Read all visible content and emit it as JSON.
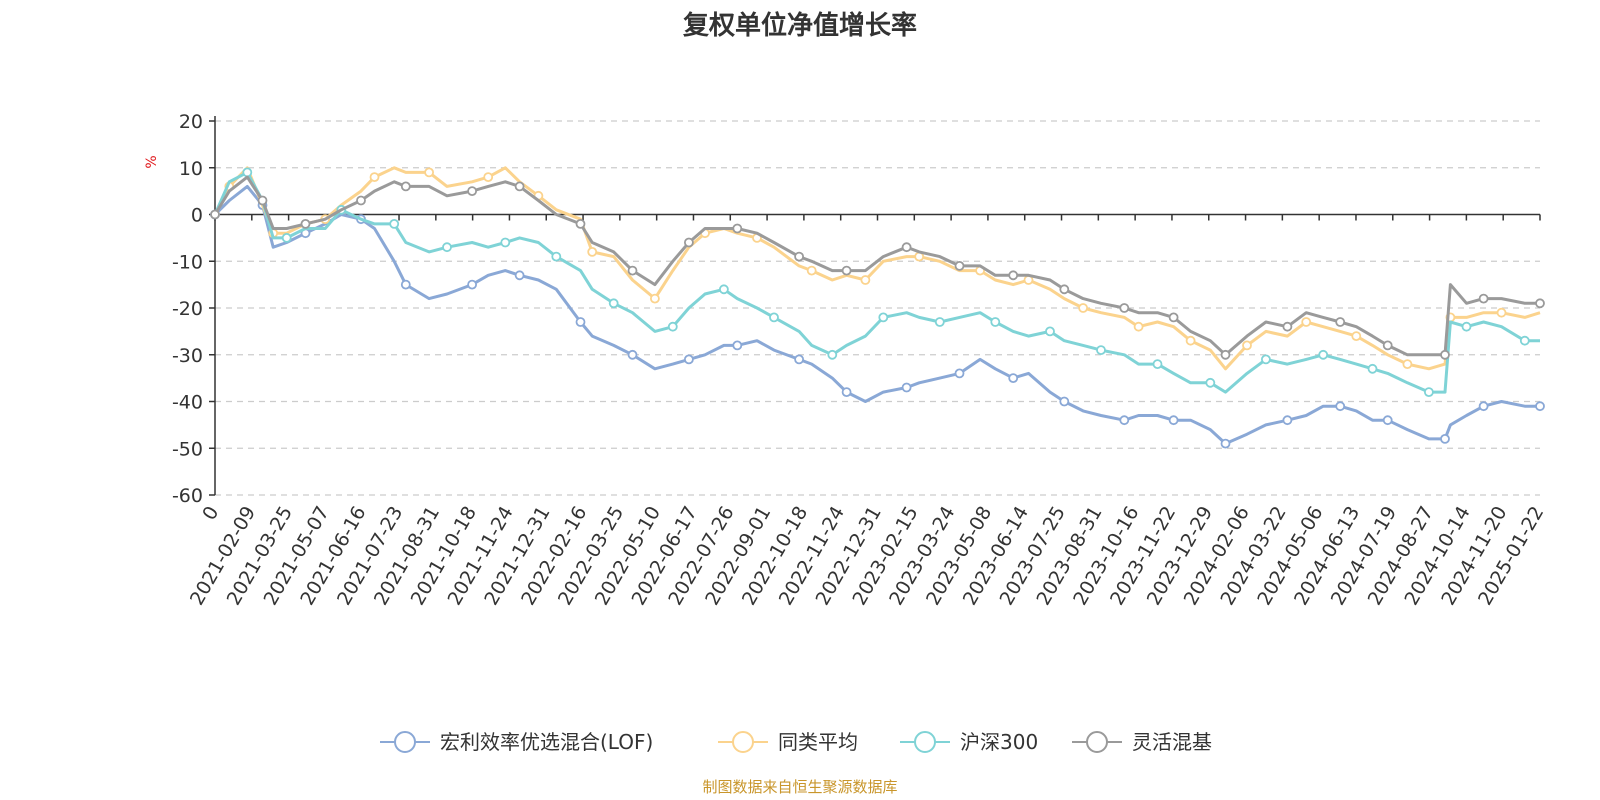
{
  "chart_data": {
    "type": "line",
    "title": "复权单位净值增长率",
    "ylabel": "%",
    "ylim": [
      -60,
      20
    ],
    "yticks": [
      20,
      10,
      0,
      -10,
      -20,
      -30,
      -40,
      -50,
      -60
    ],
    "x_range": [
      "2021-01-04",
      "2025-01-22"
    ],
    "xtick_labels": [
      "0",
      "2021-02-09",
      "2021-03-25",
      "2021-05-07",
      "2021-06-16",
      "2021-07-23",
      "2021-08-31",
      "2021-10-18",
      "2021-11-24",
      "2021-12-31",
      "2022-02-16",
      "2022-03-25",
      "2022-05-10",
      "2022-06-17",
      "2022-07-26",
      "2022-09-01",
      "2022-10-18",
      "2022-11-24",
      "2022-12-31",
      "2023-02-15",
      "2023-03-24",
      "2023-05-08",
      "2023-06-14",
      "2023-07-25",
      "2023-08-31",
      "2023-10-16",
      "2023-11-22",
      "2023-12-29",
      "2024-02-06",
      "2024-03-22",
      "2024-05-06",
      "2024-06-13",
      "2024-07-19",
      "2024-08-27",
      "2024-10-14",
      "2024-11-20",
      "2025-01-22"
    ],
    "grid": "horizontal-dashed",
    "legend_position": "bottom",
    "source_note": "制图数据来自恒生聚源数据库",
    "series": [
      {
        "name": "宏利效率优选混合(LOF)",
        "color": "#8aa8d6",
        "x": [
          "2021-01-04",
          "2021-01-20",
          "2021-02-09",
          "2021-02-26",
          "2021-03-10",
          "2021-03-25",
          "2021-04-15",
          "2021-05-07",
          "2021-05-25",
          "2021-06-16",
          "2021-07-01",
          "2021-07-23",
          "2021-08-05",
          "2021-08-31",
          "2021-09-20",
          "2021-10-18",
          "2021-11-05",
          "2021-11-24",
          "2021-12-10",
          "2021-12-31",
          "2022-01-20",
          "2022-02-16",
          "2022-03-01",
          "2022-03-25",
          "2022-04-15",
          "2022-05-10",
          "2022-05-30",
          "2022-06-17",
          "2022-07-05",
          "2022-07-26",
          "2022-08-10",
          "2022-09-01",
          "2022-09-20",
          "2022-10-18",
          "2022-11-01",
          "2022-11-24",
          "2022-12-10",
          "2022-12-31",
          "2023-01-20",
          "2023-02-15",
          "2023-03-01",
          "2023-03-24",
          "2023-04-15",
          "2023-05-08",
          "2023-05-25",
          "2023-06-14",
          "2023-07-01",
          "2023-07-25",
          "2023-08-10",
          "2023-08-31",
          "2023-09-20",
          "2023-10-16",
          "2023-11-01",
          "2023-11-22",
          "2023-12-10",
          "2023-12-29",
          "2024-01-20",
          "2024-02-06",
          "2024-03-01",
          "2024-03-22",
          "2024-04-15",
          "2024-05-06",
          "2024-05-25",
          "2024-06-13",
          "2024-07-01",
          "2024-07-19",
          "2024-08-05",
          "2024-08-27",
          "2024-09-20",
          "2024-10-08",
          "2024-10-14",
          "2024-11-01",
          "2024-11-20",
          "2024-12-10",
          "2025-01-05",
          "2025-01-22"
        ],
        "values": [
          0,
          3,
          6,
          2,
          -7,
          -6,
          -4,
          -2,
          0,
          -1,
          -3,
          -10,
          -15,
          -18,
          -17,
          -15,
          -13,
          -12,
          -13,
          -14,
          -16,
          -23,
          -26,
          -28,
          -30,
          -33,
          -32,
          -31,
          -30,
          -28,
          -28,
          -27,
          -29,
          -31,
          -32,
          -35,
          -38,
          -40,
          -38,
          -37,
          -36,
          -35,
          -34,
          -31,
          -33,
          -35,
          -34,
          -38,
          -40,
          -42,
          -43,
          -44,
          -43,
          -43,
          -44,
          -44,
          -46,
          -49,
          -47,
          -45,
          -44,
          -43,
          -41,
          -41,
          -42,
          -44,
          -44,
          -46,
          -48,
          -48,
          -45,
          -43,
          -41,
          -40,
          -41,
          -41
        ]
      },
      {
        "name": "同类平均",
        "color": "#fbd38d",
        "x": [
          "2021-01-04",
          "2021-01-20",
          "2021-02-09",
          "2021-02-26",
          "2021-03-10",
          "2021-03-25",
          "2021-04-15",
          "2021-05-07",
          "2021-05-25",
          "2021-06-16",
          "2021-07-01",
          "2021-07-23",
          "2021-08-05",
          "2021-08-31",
          "2021-09-20",
          "2021-10-18",
          "2021-11-05",
          "2021-11-24",
          "2021-12-10",
          "2021-12-31",
          "2022-01-20",
          "2022-02-16",
          "2022-03-01",
          "2022-03-25",
          "2022-04-15",
          "2022-05-10",
          "2022-05-30",
          "2022-06-17",
          "2022-07-05",
          "2022-07-26",
          "2022-08-10",
          "2022-09-01",
          "2022-09-20",
          "2022-10-18",
          "2022-11-01",
          "2022-11-24",
          "2022-12-10",
          "2022-12-31",
          "2023-01-20",
          "2023-02-15",
          "2023-03-01",
          "2023-03-24",
          "2023-04-15",
          "2023-05-08",
          "2023-05-25",
          "2023-06-14",
          "2023-07-01",
          "2023-07-25",
          "2023-08-10",
          "2023-08-31",
          "2023-09-20",
          "2023-10-16",
          "2023-11-01",
          "2023-11-22",
          "2023-12-10",
          "2023-12-29",
          "2024-01-20",
          "2024-02-06",
          "2024-03-01",
          "2024-03-22",
          "2024-04-15",
          "2024-05-06",
          "2024-05-25",
          "2024-06-13",
          "2024-07-01",
          "2024-07-19",
          "2024-08-05",
          "2024-08-27",
          "2024-09-20",
          "2024-10-08",
          "2024-10-14",
          "2024-11-01",
          "2024-11-20",
          "2024-12-10",
          "2025-01-05",
          "2025-01-22"
        ],
        "values": [
          0,
          6,
          10,
          2,
          -4,
          -4,
          -2,
          -1,
          2,
          5,
          8,
          10,
          9,
          9,
          6,
          7,
          8,
          10,
          7,
          4,
          1,
          -1,
          -8,
          -9,
          -14,
          -18,
          -12,
          -7,
          -4,
          -3,
          -4,
          -5,
          -7,
          -11,
          -12,
          -14,
          -13,
          -14,
          -10,
          -9,
          -9,
          -10,
          -12,
          -12,
          -14,
          -15,
          -14,
          -16,
          -18,
          -20,
          -21,
          -22,
          -24,
          -23,
          -24,
          -27,
          -29,
          -33,
          -28,
          -25,
          -26,
          -23,
          -24,
          -25,
          -26,
          -28,
          -30,
          -32,
          -33,
          -32,
          -22,
          -22,
          -21,
          -21,
          -22,
          -21
        ]
      },
      {
        "name": "沪深300",
        "color": "#7fd3d6",
        "x": [
          "2021-01-04",
          "2021-01-20",
          "2021-02-09",
          "2021-02-26",
          "2021-03-10",
          "2021-03-25",
          "2021-04-15",
          "2021-05-07",
          "2021-05-25",
          "2021-06-16",
          "2021-07-01",
          "2021-07-23",
          "2021-08-05",
          "2021-08-31",
          "2021-09-20",
          "2021-10-18",
          "2021-11-05",
          "2021-11-24",
          "2021-12-10",
          "2021-12-31",
          "2022-01-20",
          "2022-02-16",
          "2022-03-01",
          "2022-03-25",
          "2022-04-15",
          "2022-05-10",
          "2022-05-30",
          "2022-06-17",
          "2022-07-05",
          "2022-07-26",
          "2022-08-10",
          "2022-09-01",
          "2022-09-20",
          "2022-10-18",
          "2022-11-01",
          "2022-11-24",
          "2022-12-10",
          "2022-12-31",
          "2023-01-20",
          "2023-02-15",
          "2023-03-01",
          "2023-03-24",
          "2023-04-15",
          "2023-05-08",
          "2023-05-25",
          "2023-06-14",
          "2023-07-01",
          "2023-07-25",
          "2023-08-10",
          "2023-08-31",
          "2023-09-20",
          "2023-10-16",
          "2023-11-01",
          "2023-11-22",
          "2023-12-10",
          "2023-12-29",
          "2024-01-20",
          "2024-02-06",
          "2024-03-01",
          "2024-03-22",
          "2024-04-15",
          "2024-05-06",
          "2024-05-25",
          "2024-06-13",
          "2024-07-01",
          "2024-07-19",
          "2024-08-05",
          "2024-08-27",
          "2024-09-20",
          "2024-10-08",
          "2024-10-14",
          "2024-11-01",
          "2024-11-20",
          "2024-12-10",
          "2025-01-05",
          "2025-01-22"
        ],
        "values": [
          0,
          7,
          9,
          3,
          -5,
          -5,
          -3,
          -3,
          1,
          -1,
          -2,
          -2,
          -6,
          -8,
          -7,
          -6,
          -7,
          -6,
          -5,
          -6,
          -9,
          -12,
          -16,
          -19,
          -21,
          -25,
          -24,
          -20,
          -17,
          -16,
          -18,
          -20,
          -22,
          -25,
          -28,
          -30,
          -28,
          -26,
          -22,
          -21,
          -22,
          -23,
          -22,
          -21,
          -23,
          -25,
          -26,
          -25,
          -27,
          -28,
          -29,
          -30,
          -32,
          -32,
          -34,
          -36,
          -36,
          -38,
          -34,
          -31,
          -32,
          -31,
          -30,
          -31,
          -32,
          -33,
          -34,
          -36,
          -38,
          -38,
          -23,
          -24,
          -23,
          -24,
          -27,
          -27
        ]
      },
      {
        "name": "灵活混基",
        "color": "#9a9a9a",
        "x": [
          "2021-01-04",
          "2021-01-20",
          "2021-02-09",
          "2021-02-26",
          "2021-03-10",
          "2021-03-25",
          "2021-04-15",
          "2021-05-07",
          "2021-05-25",
          "2021-06-16",
          "2021-07-01",
          "2021-07-23",
          "2021-08-05",
          "2021-08-31",
          "2021-09-20",
          "2021-10-18",
          "2021-11-05",
          "2021-11-24",
          "2021-12-10",
          "2021-12-31",
          "2022-01-20",
          "2022-02-16",
          "2022-03-01",
          "2022-03-25",
          "2022-04-15",
          "2022-05-10",
          "2022-05-30",
          "2022-06-17",
          "2022-07-05",
          "2022-07-26",
          "2022-08-10",
          "2022-09-01",
          "2022-09-20",
          "2022-10-18",
          "2022-11-01",
          "2022-11-24",
          "2022-12-10",
          "2022-12-31",
          "2023-01-20",
          "2023-02-15",
          "2023-03-01",
          "2023-03-24",
          "2023-04-15",
          "2023-05-08",
          "2023-05-25",
          "2023-06-14",
          "2023-07-01",
          "2023-07-25",
          "2023-08-10",
          "2023-08-31",
          "2023-09-20",
          "2023-10-16",
          "2023-11-01",
          "2023-11-22",
          "2023-12-10",
          "2023-12-29",
          "2024-01-20",
          "2024-02-06",
          "2024-03-01",
          "2024-03-22",
          "2024-04-15",
          "2024-05-06",
          "2024-05-25",
          "2024-06-13",
          "2024-07-01",
          "2024-07-19",
          "2024-08-05",
          "2024-08-27",
          "2024-09-20",
          "2024-10-08",
          "2024-10-14",
          "2024-11-01",
          "2024-11-20",
          "2024-12-10",
          "2025-01-05",
          "2025-01-22"
        ],
        "values": [
          0,
          5,
          8,
          3,
          -3,
          -3,
          -2,
          -1,
          1,
          3,
          5,
          7,
          6,
          6,
          4,
          5,
          6,
          7,
          6,
          3,
          0,
          -2,
          -6,
          -8,
          -12,
          -15,
          -10,
          -6,
          -3,
          -3,
          -3,
          -4,
          -6,
          -9,
          -10,
          -12,
          -12,
          -12,
          -9,
          -7,
          -8,
          -9,
          -11,
          -11,
          -13,
          -13,
          -13,
          -14,
          -16,
          -18,
          -19,
          -20,
          -21,
          -21,
          -22,
          -25,
          -27,
          -30,
          -26,
          -23,
          -24,
          -21,
          -22,
          -23,
          -24,
          -26,
          -28,
          -30,
          -30,
          -30,
          -15,
          -19,
          -18,
          -18,
          -19,
          -19
        ]
      }
    ]
  }
}
